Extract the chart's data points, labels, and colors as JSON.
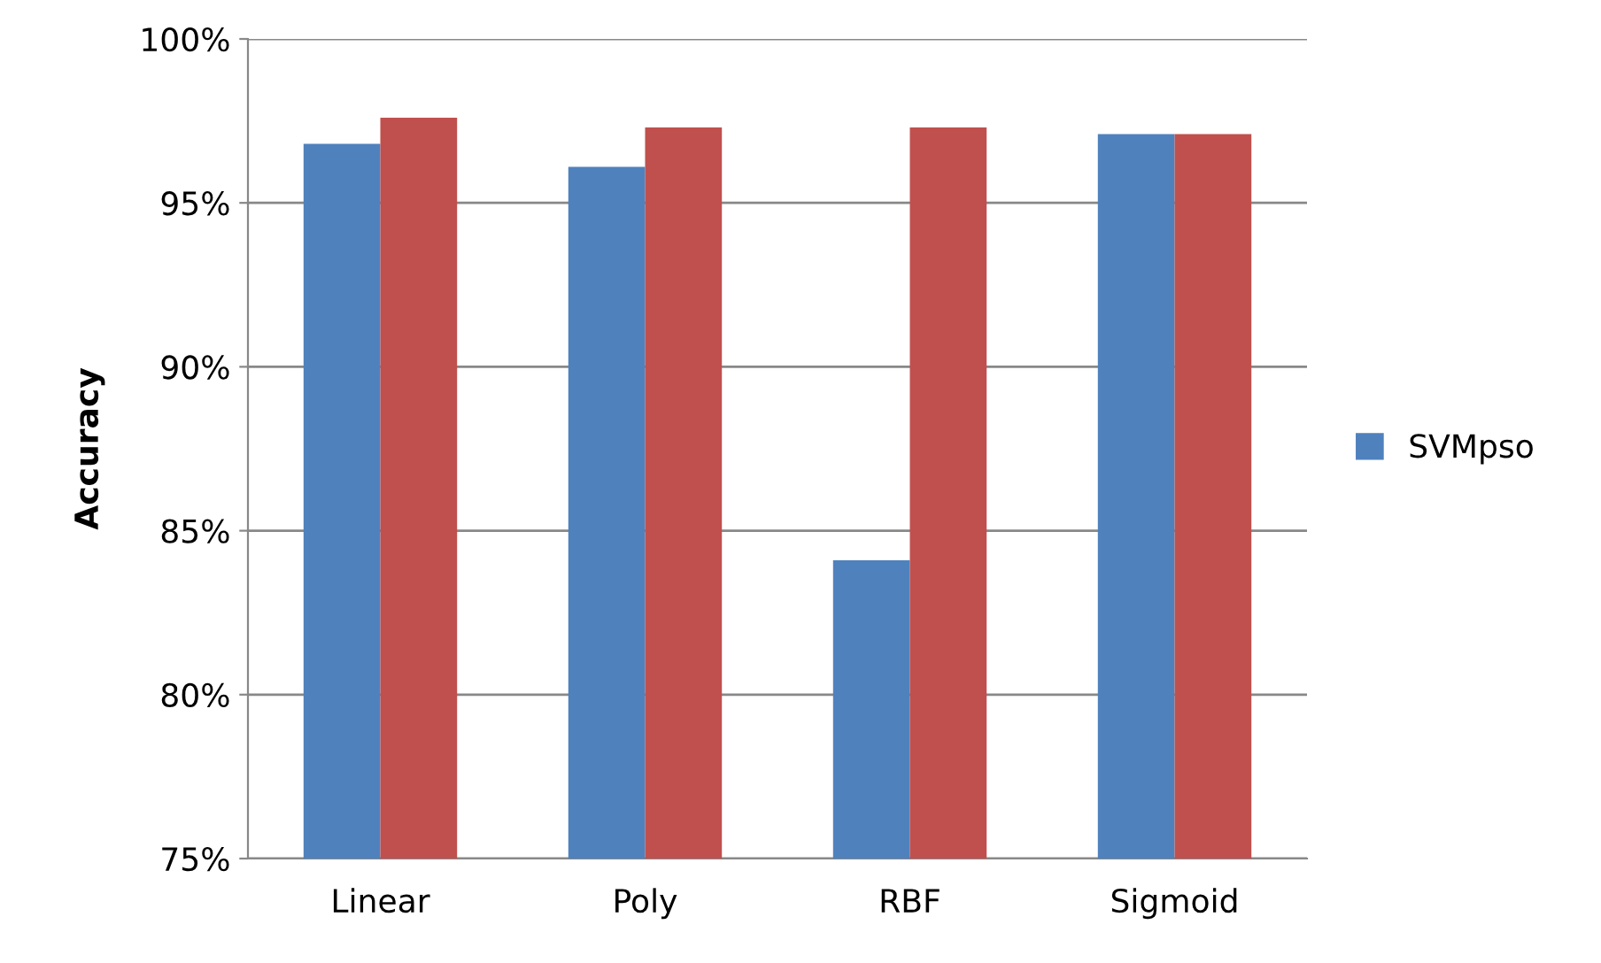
{
  "chart_data": {
    "type": "bar",
    "ylabel": "Accuracy",
    "categories": [
      "Linear",
      "Poly",
      "RBF",
      "Sigmoid"
    ],
    "series": [
      {
        "name": "SVMpso",
        "color": "#4f81bd",
        "values": [
          96.8,
          96.1,
          84.1,
          97.1
        ]
      },
      {
        "color": "#c0504d",
        "values": [
          97.6,
          97.3,
          97.3,
          97.1
        ]
      }
    ],
    "ylim": [
      75,
      100
    ],
    "yticks": [
      {
        "value": 75,
        "label": "75%"
      },
      {
        "value": 80,
        "label": "80%"
      },
      {
        "value": 85,
        "label": "85%"
      },
      {
        "value": 90,
        "label": "90%"
      },
      {
        "value": 95,
        "label": "95%"
      },
      {
        "value": 100,
        "label": "100%"
      }
    ],
    "grid": "y",
    "legend": "right"
  }
}
